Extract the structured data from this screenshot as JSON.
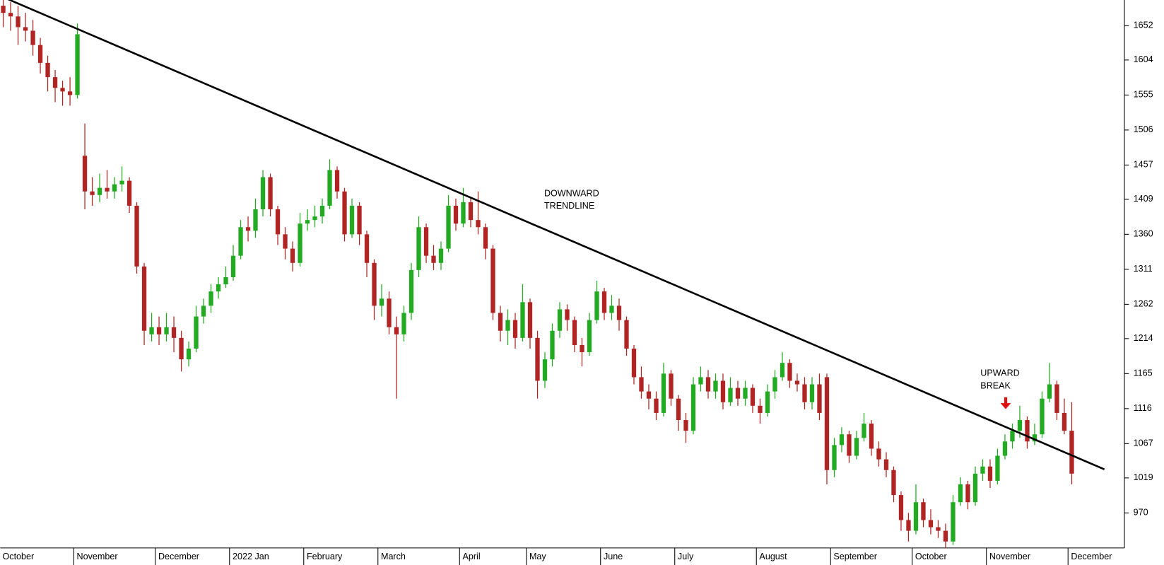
{
  "chart_data": {
    "type": "candlestick",
    "up_color": "#22aa22",
    "down_color": "#b02424",
    "ylim": [
      921,
      1688
    ],
    "xlim": [
      -0.4,
      151.1
    ],
    "yticks": [
      970,
      1019,
      1067,
      1116,
      1165,
      1214,
      1262,
      1311,
      1360,
      1409,
      1457,
      1506,
      1555,
      1604,
      1652
    ],
    "categories": [
      "October",
      null,
      null,
      null,
      null,
      null,
      null,
      null,
      null,
      null,
      "November",
      null,
      null,
      null,
      null,
      null,
      null,
      null,
      null,
      null,
      null,
      "December",
      null,
      null,
      null,
      null,
      null,
      null,
      null,
      null,
      null,
      "2022 Jan",
      null,
      null,
      null,
      null,
      null,
      null,
      null,
      null,
      null,
      "February",
      null,
      null,
      null,
      null,
      null,
      null,
      null,
      null,
      null,
      "March",
      null,
      null,
      null,
      null,
      null,
      null,
      null,
      null,
      null,
      null,
      "April",
      null,
      null,
      null,
      null,
      null,
      null,
      null,
      null,
      "May",
      null,
      null,
      null,
      null,
      null,
      null,
      null,
      null,
      null,
      "June",
      null,
      null,
      null,
      null,
      null,
      null,
      null,
      null,
      null,
      "July",
      null,
      null,
      null,
      null,
      null,
      null,
      null,
      null,
      null,
      null,
      "August",
      null,
      null,
      null,
      null,
      null,
      null,
      null,
      null,
      null,
      "September",
      null,
      null,
      null,
      null,
      null,
      null,
      null,
      null,
      null,
      null,
      "October",
      null,
      null,
      null,
      null,
      null,
      null,
      null,
      null,
      null,
      "November",
      null,
      null,
      null,
      null,
      null,
      null,
      null,
      null,
      null,
      null,
      "December"
    ],
    "open": [
      1680,
      1670,
      1665,
      1650,
      1645,
      1625,
      1600,
      1580,
      1565,
      1560,
      1555,
      1470,
      1420,
      1415,
      1425,
      1420,
      1430,
      1435,
      1400,
      1315,
      1220,
      1230,
      1220,
      1230,
      1215,
      1185,
      1200,
      1245,
      1260,
      1280,
      1290,
      1300,
      1330,
      1370,
      1365,
      1395,
      1440,
      1395,
      1360,
      1340,
      1320,
      1375,
      1380,
      1385,
      1400,
      1450,
      1420,
      1360,
      1400,
      1360,
      1320,
      1260,
      1270,
      1230,
      1220,
      1250,
      1310,
      1370,
      1330,
      1320,
      1340,
      1400,
      1375,
      1405,
      1380,
      1370,
      1340,
      1250,
      1225,
      1240,
      1215,
      1265,
      1215,
      1155,
      1185,
      1225,
      1255,
      1240,
      1205,
      1195,
      1240,
      1280,
      1250,
      1260,
      1240,
      1200,
      1160,
      1140,
      1130,
      1110,
      1165,
      1130,
      1100,
      1085,
      1150,
      1160,
      1140,
      1155,
      1125,
      1145,
      1130,
      1145,
      1120,
      1110,
      1140,
      1160,
      1180,
      1155,
      1150,
      1125,
      1150,
      1160,
      1030,
      1065,
      1080,
      1050,
      1075,
      1095,
      1060,
      1045,
      1030,
      995,
      960,
      945,
      985,
      960,
      950,
      945,
      930,
      985,
      1010,
      985,
      1025,
      1035,
      1015,
      1050,
      1070,
      1085,
      1100,
      1070,
      1080,
      1130,
      1150,
      1110,
      1085
    ],
    "close": [
      1670,
      1665,
      1650,
      1645,
      1625,
      1600,
      1580,
      1565,
      1560,
      1555,
      1640,
      1420,
      1415,
      1425,
      1420,
      1430,
      1435,
      1400,
      1315,
      1225,
      1230,
      1220,
      1230,
      1215,
      1185,
      1200,
      1245,
      1260,
      1280,
      1290,
      1300,
      1330,
      1370,
      1365,
      1395,
      1440,
      1395,
      1360,
      1340,
      1320,
      1375,
      1380,
      1385,
      1400,
      1450,
      1420,
      1360,
      1400,
      1360,
      1320,
      1260,
      1270,
      1230,
      1220,
      1250,
      1310,
      1370,
      1330,
      1320,
      1340,
      1400,
      1375,
      1405,
      1380,
      1370,
      1340,
      1250,
      1225,
      1240,
      1215,
      1265,
      1215,
      1155,
      1185,
      1225,
      1255,
      1240,
      1205,
      1195,
      1240,
      1280,
      1250,
      1260,
      1240,
      1200,
      1160,
      1140,
      1130,
      1110,
      1165,
      1130,
      1100,
      1085,
      1150,
      1160,
      1140,
      1155,
      1125,
      1145,
      1130,
      1145,
      1120,
      1110,
      1140,
      1160,
      1180,
      1155,
      1150,
      1125,
      1150,
      1110,
      1030,
      1065,
      1080,
      1050,
      1075,
      1095,
      1060,
      1045,
      1030,
      995,
      960,
      945,
      985,
      960,
      950,
      945,
      930,
      985,
      1010,
      985,
      1025,
      1035,
      1015,
      1050,
      1070,
      1085,
      1100,
      1070,
      1080,
      1130,
      1150,
      1110,
      1085,
      1025
    ],
    "high": [
      1688,
      1685,
      1680,
      1670,
      1660,
      1635,
      1610,
      1590,
      1575,
      1580,
      1655,
      1515,
      1440,
      1445,
      1450,
      1440,
      1455,
      1440,
      1405,
      1320,
      1250,
      1245,
      1250,
      1245,
      1225,
      1210,
      1260,
      1270,
      1290,
      1300,
      1315,
      1345,
      1380,
      1385,
      1410,
      1450,
      1445,
      1400,
      1370,
      1350,
      1390,
      1395,
      1400,
      1410,
      1465,
      1455,
      1425,
      1410,
      1405,
      1365,
      1325,
      1290,
      1280,
      1245,
      1260,
      1320,
      1385,
      1375,
      1345,
      1350,
      1415,
      1410,
      1425,
      1410,
      1420,
      1375,
      1345,
      1260,
      1255,
      1250,
      1290,
      1270,
      1225,
      1195,
      1235,
      1265,
      1262,
      1245,
      1215,
      1250,
      1295,
      1285,
      1275,
      1270,
      1245,
      1205,
      1175,
      1150,
      1140,
      1180,
      1170,
      1135,
      1110,
      1160,
      1175,
      1170,
      1165,
      1165,
      1160,
      1155,
      1155,
      1150,
      1130,
      1150,
      1170,
      1195,
      1185,
      1165,
      1160,
      1160,
      1165,
      1165,
      1075,
      1090,
      1085,
      1085,
      1110,
      1100,
      1070,
      1055,
      1035,
      1000,
      970,
      1010,
      990,
      975,
      960,
      955,
      995,
      1020,
      1015,
      1035,
      1045,
      1045,
      1060,
      1080,
      1095,
      1120,
      1105,
      1095,
      1140,
      1180,
      1155,
      1130,
      1125
    ],
    "low": [
      1650,
      1645,
      1625,
      1630,
      1610,
      1585,
      1560,
      1545,
      1540,
      1540,
      1550,
      1395,
      1400,
      1405,
      1410,
      1410,
      1420,
      1390,
      1305,
      1205,
      1210,
      1205,
      1210,
      1195,
      1168,
      1175,
      1195,
      1235,
      1250,
      1270,
      1285,
      1295,
      1325,
      1350,
      1355,
      1385,
      1385,
      1345,
      1325,
      1308,
      1315,
      1365,
      1370,
      1375,
      1395,
      1410,
      1350,
      1355,
      1345,
      1300,
      1240,
      1245,
      1220,
      1130,
      1210,
      1240,
      1300,
      1320,
      1310,
      1310,
      1335,
      1365,
      1370,
      1370,
      1360,
      1325,
      1240,
      1210,
      1205,
      1200,
      1210,
      1200,
      1130,
      1145,
      1175,
      1215,
      1225,
      1195,
      1175,
      1190,
      1235,
      1240,
      1240,
      1225,
      1190,
      1150,
      1130,
      1115,
      1100,
      1105,
      1120,
      1085,
      1068,
      1080,
      1140,
      1130,
      1130,
      1115,
      1120,
      1120,
      1120,
      1110,
      1095,
      1105,
      1130,
      1155,
      1145,
      1140,
      1115,
      1115,
      1100,
      1010,
      1020,
      1055,
      1040,
      1045,
      1070,
      1050,
      1035,
      1020,
      985,
      945,
      930,
      940,
      950,
      940,
      935,
      915,
      925,
      980,
      975,
      980,
      1015,
      1005,
      1010,
      1045,
      1060,
      1075,
      1060,
      1065,
      1075,
      1125,
      1100,
      1080,
      1010
    ],
    "trendline": {
      "x": [
        0,
        148.4
      ],
      "y": [
        1692,
        1031
      ]
    },
    "annotations": [
      {
        "lines": [
          "DOWNWARD",
          "TRENDLINE"
        ]
      },
      {
        "lines": [
          "UPWARD",
          "BREAK"
        ]
      }
    ]
  }
}
